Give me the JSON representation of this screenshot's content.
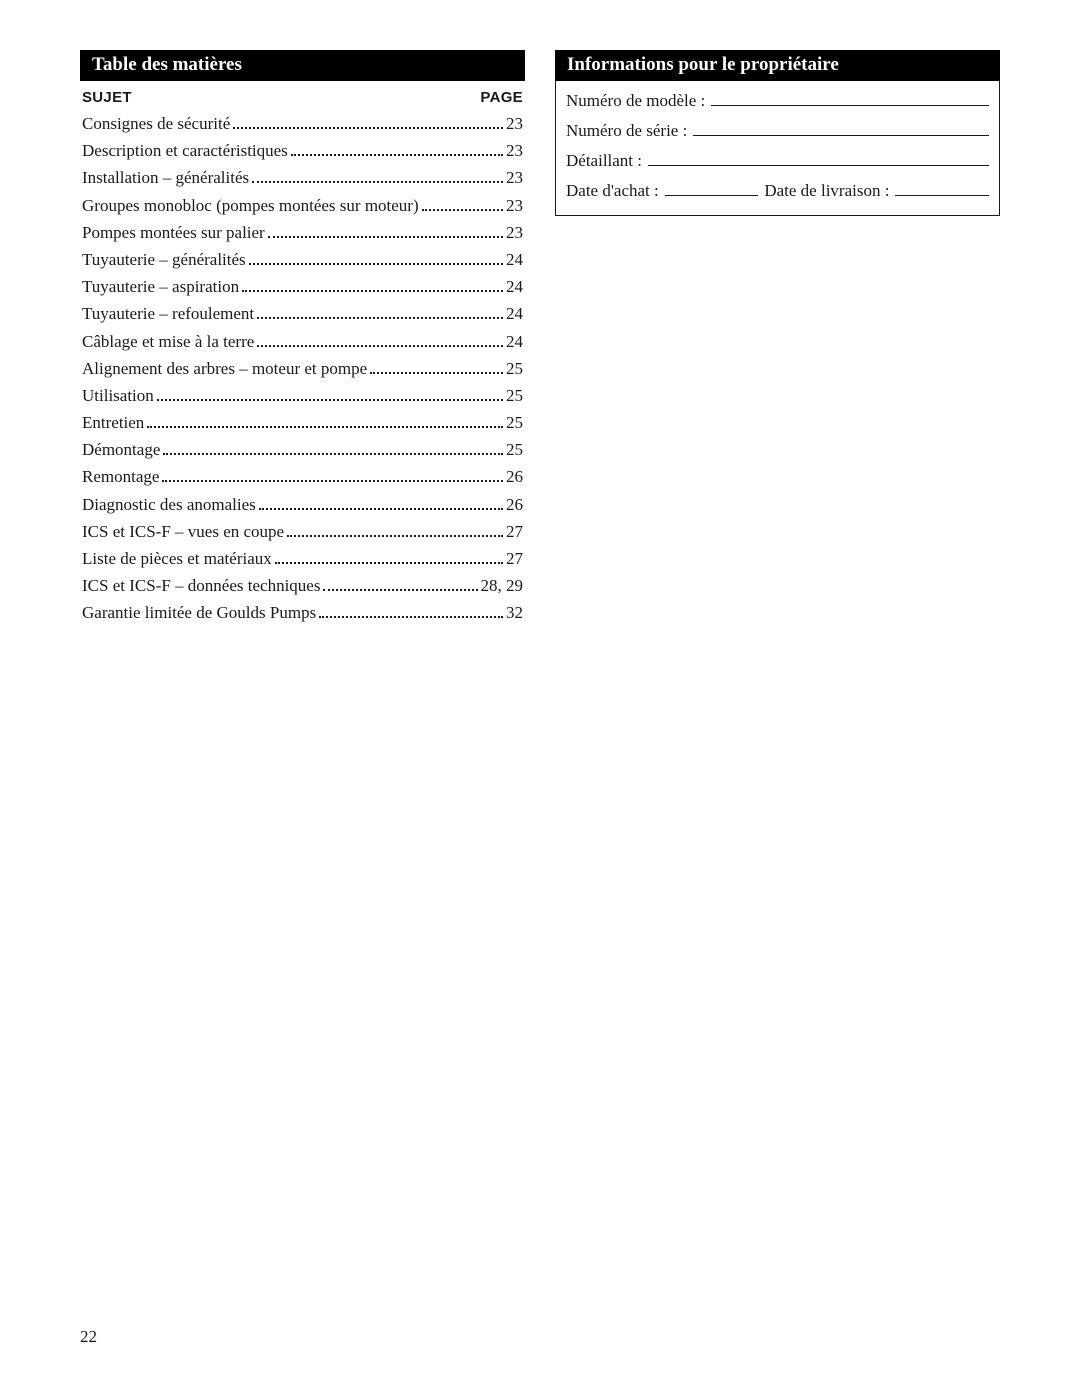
{
  "left": {
    "title": "Table des matières",
    "header_subject": "SUJET",
    "header_page": "PAGE",
    "items": [
      {
        "label": "Consignes de sécurité",
        "page": "23"
      },
      {
        "label": "Description et caractéristiques",
        "page": "23"
      },
      {
        "label": "Installation – généralités",
        "page": "23"
      },
      {
        "label": "Groupes monobloc (pompes montées sur moteur)",
        "page": "23"
      },
      {
        "label": "Pompes montées sur palier",
        "page": "23"
      },
      {
        "label": "Tuyauterie – généralités",
        "page": "24"
      },
      {
        "label": "Tuyauterie – aspiration",
        "page": "24"
      },
      {
        "label": "Tuyauterie – refoulement",
        "page": "24"
      },
      {
        "label": "Câblage et mise à la terre",
        "page": "24"
      },
      {
        "label": "Alignement des arbres – moteur et pompe",
        "page": "25"
      },
      {
        "label": "Utilisation",
        "page": "25"
      },
      {
        "label": "Entretien",
        "page": "25"
      },
      {
        "label": "Démontage",
        "page": "25"
      },
      {
        "label": "Remontage",
        "page": "26"
      },
      {
        "label": "Diagnostic des anomalies",
        "page": "26"
      },
      {
        "label": "ICS et ICS-F – vues en coupe",
        "page": "27"
      },
      {
        "label": "Liste de pièces et matériaux",
        "page": "27"
      },
      {
        "label": "ICS et ICS-F – données techniques",
        "page": "28, 29"
      },
      {
        "label": "Garantie limitée de Goulds Pumps",
        "page": "32"
      }
    ]
  },
  "right": {
    "title": "Informations pour le propriétaire",
    "model_label": "Numéro de modèle :",
    "serial_label": "Numéro de série :",
    "dealer_label": "Détaillant :",
    "purchase_date_label": "Date d'achat :",
    "delivery_date_label": "Date de livraison :"
  },
  "page_number": "22",
  "colors": {
    "header_bg": "#000000",
    "header_fg": "#ffffff",
    "text": "#1a1a1a",
    "page_bg": "#ffffff"
  }
}
